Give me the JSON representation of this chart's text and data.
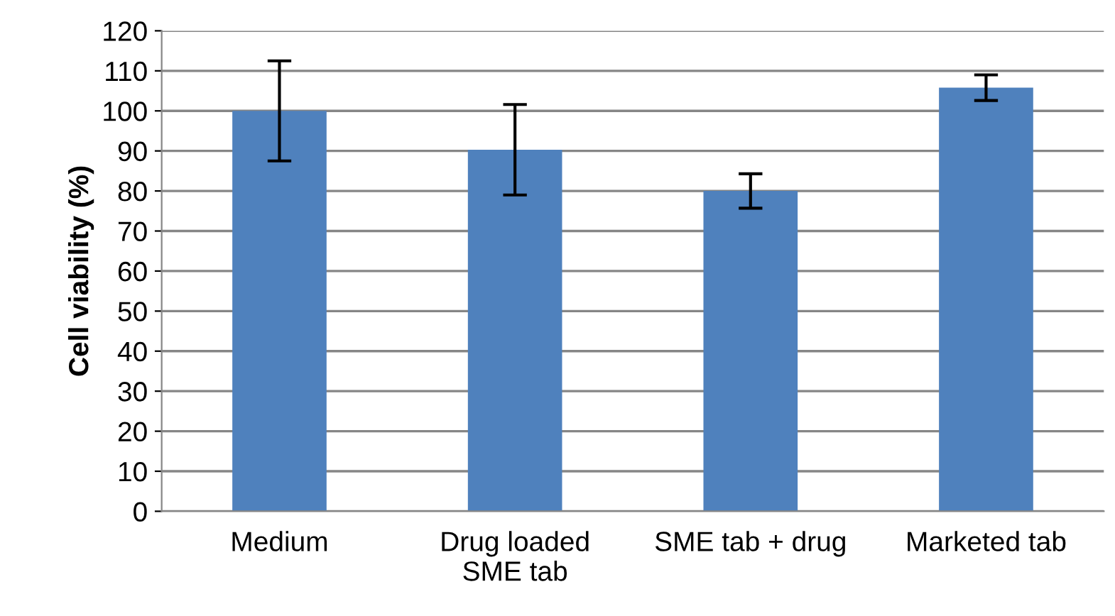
{
  "chart_data": {
    "type": "bar",
    "ylabel": "Cell viability (%)",
    "categories": [
      "Medium",
      "Drug loaded\nSME tab",
      "SME tab + drug",
      "Marketed tab"
    ],
    "values": [
      100,
      90.3,
      80,
      105.8
    ],
    "errors": [
      12.5,
      11.3,
      4.3,
      3.2
    ],
    "color": "#4f81bd",
    "ylim": [
      0,
      120
    ],
    "yticks": [
      0,
      10,
      20,
      30,
      40,
      50,
      60,
      70,
      80,
      90,
      100,
      110,
      120
    ],
    "grid": "y"
  }
}
